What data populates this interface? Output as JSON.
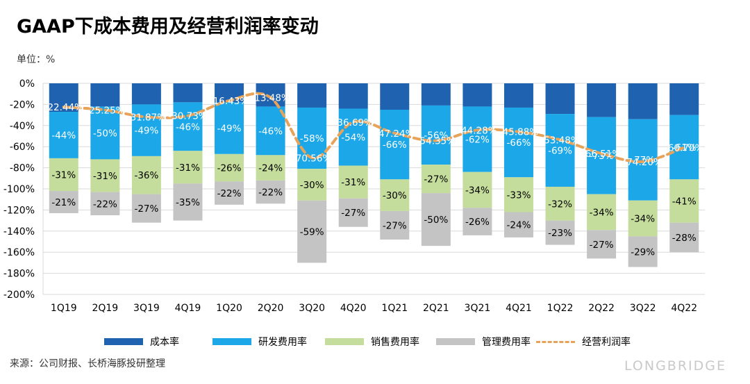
{
  "title": "GAAP下成本费用及经营利润率变动",
  "unit": "单位：%",
  "source": "来源：公司财报、长桥海豚投研整理",
  "watermark": "LONGBRIDGE",
  "colors": {
    "cost": "#1f63b0",
    "rd": "#1ba7e8",
    "sales": "#c5dd9c",
    "admin": "#c4c4c4",
    "op_margin": "#e8a35a",
    "grid": "#d9d9d9"
  },
  "chart_data": {
    "type": "bar",
    "stacked": true,
    "categories": [
      "1Q19",
      "2Q19",
      "3Q19",
      "4Q19",
      "1Q20",
      "2Q20",
      "3Q20",
      "4Q20",
      "1Q21",
      "2Q21",
      "3Q21",
      "4Q21",
      "1Q22",
      "2Q22",
      "3Q22",
      "4Q22"
    ],
    "ylim": [
      -200,
      0
    ],
    "yticks": [
      0,
      -20,
      -40,
      -60,
      -80,
      -100,
      -120,
      -140,
      -160,
      -180,
      -200
    ],
    "ytick_labels": [
      "0%",
      "-20%",
      "-40%",
      "-60%",
      "-80%",
      "-100%",
      "-120%",
      "-140%",
      "-160%",
      "-180%",
      "-200%"
    ],
    "grid": true,
    "legend_position": "bottom",
    "series": [
      {
        "name": "成本率",
        "key": "cost",
        "values": [
          -27,
          -22,
          -20,
          -18,
          -18,
          -22,
          -23,
          -24,
          -25,
          -21,
          -22,
          -23,
          -29,
          -32,
          -34,
          -30
        ]
      },
      {
        "name": "研发费用率",
        "key": "rd",
        "values": [
          -44,
          -50,
          -49,
          -46,
          -49,
          -46,
          -58,
          -54,
          -66,
          -56,
          -62,
          -66,
          -69,
          -73,
          -77,
          -61
        ]
      },
      {
        "name": "销售费用率",
        "key": "sales",
        "values": [
          -31,
          -31,
          -36,
          -31,
          -26,
          -24,
          -30,
          -31,
          -30,
          -27,
          -34,
          -33,
          -32,
          -34,
          -34,
          -41
        ]
      },
      {
        "name": "管理费用率",
        "key": "admin",
        "values": [
          -21,
          -22,
          -27,
          -35,
          -22,
          -22,
          -59,
          -27,
          -27,
          -50,
          -26,
          -24,
          -23,
          -27,
          -29,
          -28
        ]
      }
    ],
    "bar_labels": {
      "rd": [
        "-44%",
        "-50%",
        "-49%",
        "-46%",
        "-49%",
        "-46%",
        "-58%",
        "-54%",
        "-66%",
        "-56%",
        "-62%",
        "-66%",
        "-69%",
        "-73%",
        "-77%",
        "-61%"
      ],
      "sales": [
        "-31%",
        "-31%",
        "-36%",
        "-31%",
        "-26%",
        "-24%",
        "-30%",
        "-31%",
        "-30%",
        "-27%",
        "-34%",
        "-33%",
        "-32%",
        "-34%",
        "-34%",
        "-41%"
      ],
      "admin": [
        "-21%",
        "-22%",
        "-27%",
        "-35%",
        "-22%",
        "-22%",
        "-59%",
        "-27%",
        "-27%",
        "-50%",
        "-26%",
        "-24%",
        "-23%",
        "-27%",
        "-29%",
        "-28%"
      ]
    },
    "line": {
      "name": "经营利润率",
      "key": "op_margin",
      "style": "dashed",
      "values": [
        -22.44,
        -25.25,
        -31.87,
        -30.73,
        -16.43,
        -13.48,
        -70.56,
        -36.69,
        -47.24,
        -54.35,
        -44.28,
        -45.88,
        -53.48,
        -66.51,
        -74.2,
        -60.7
      ],
      "labels": [
        "-22.44%",
        "-25.25%",
        "-31.87%",
        "-30.73%",
        "-16.43%",
        "-13.48%",
        "-70.56%",
        "-36.69%",
        "-47.24%",
        "-54.35%",
        "-44.28%",
        "-45.88%",
        "-53.48%",
        "-66.51%",
        "-74.20%",
        "-60.70%"
      ]
    }
  }
}
